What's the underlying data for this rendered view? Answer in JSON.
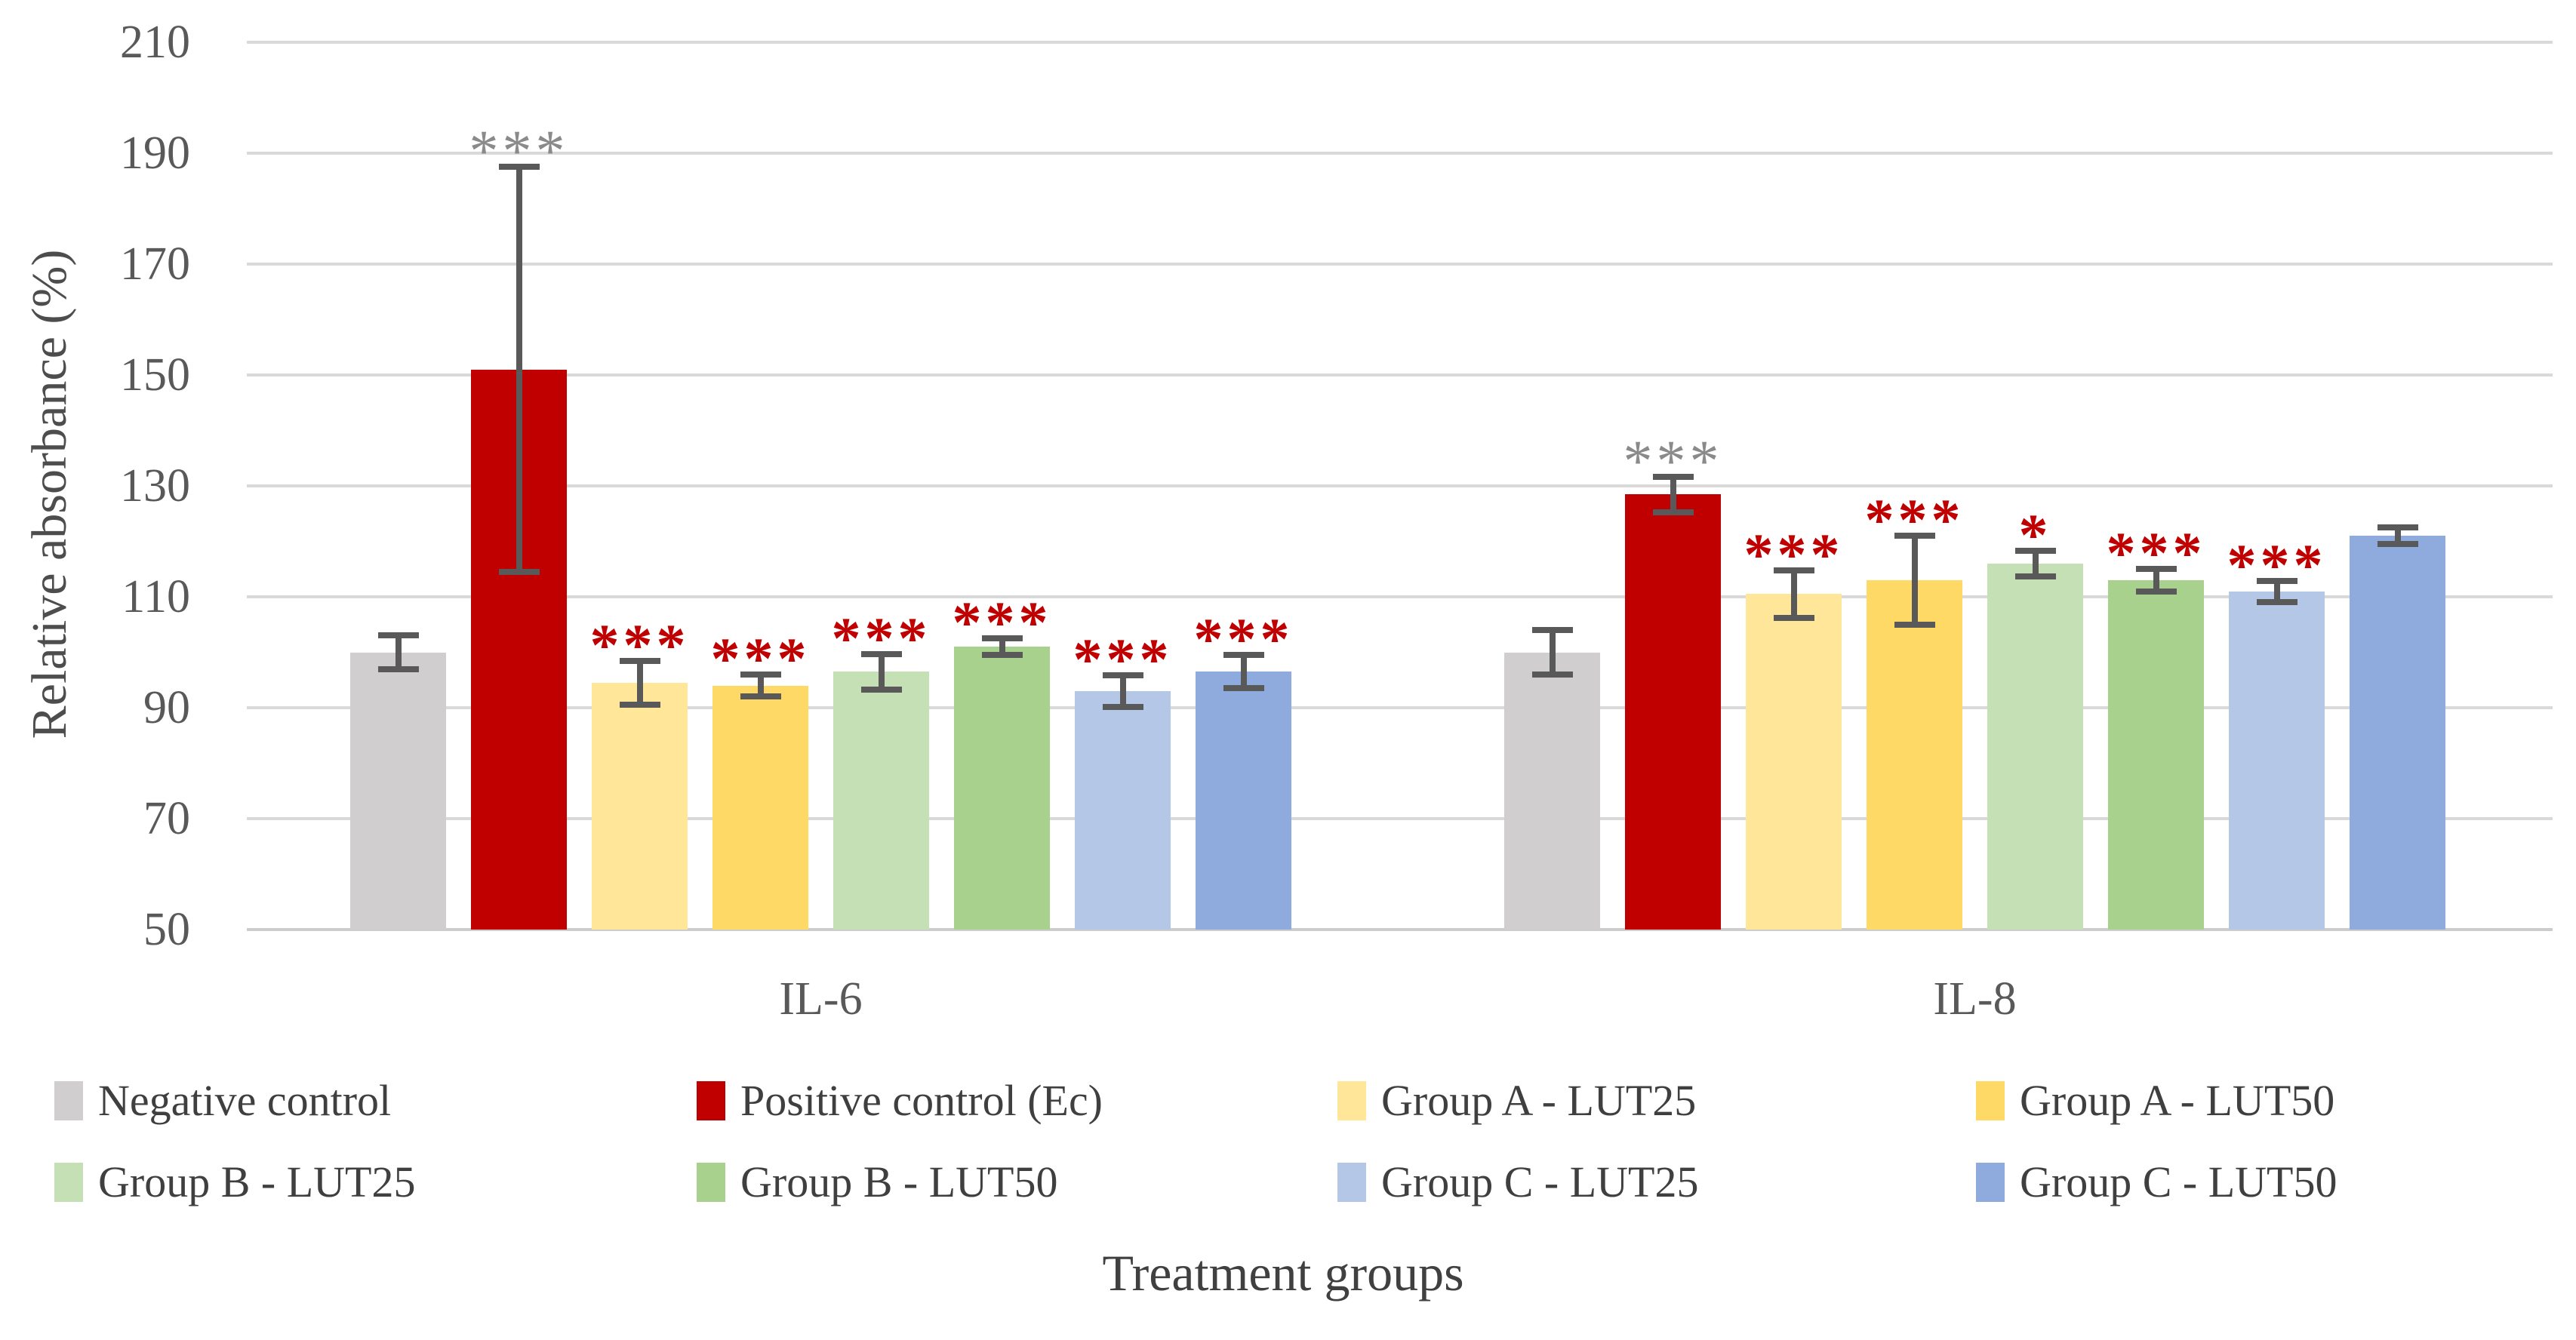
{
  "chart_data": {
    "type": "bar",
    "title": "",
    "ylabel": "Relative absorbance (%)",
    "xlabel": "Treatment groups",
    "ylim": [
      50,
      210
    ],
    "ytick_step": 20,
    "ytick_labels": [
      "50",
      "70",
      "90",
      "110",
      "130",
      "150",
      "170",
      "190",
      "210"
    ],
    "grid": "horizontal-only",
    "legend_position": "bottom",
    "gridline_color": "#d9d9d9",
    "error_bar_color": "#595959",
    "sig_color_control": "#8a8a8a",
    "sig_color_treatment": "#c00000",
    "categories": [
      "IL-6",
      "IL-8"
    ],
    "series": [
      {
        "name": "Negative control",
        "color": "#d0cece",
        "values": [
          100,
          100
        ],
        "errors": [
          3,
          4
        ],
        "stars": [
          "",
          ""
        ],
        "star_color": ""
      },
      {
        "name": "Positive control (Ec)",
        "color": "#c00000",
        "values": [
          151,
          128.5
        ],
        "errors": [
          36.5,
          3.2
        ],
        "stars": [
          "***",
          "***"
        ],
        "star_color": "gray"
      },
      {
        "name": "Group A - LUT25",
        "color": "#ffe699",
        "values": [
          94.5,
          110.5
        ],
        "errors": [
          4,
          4.3
        ],
        "stars": [
          "***",
          "***"
        ],
        "star_color": "red"
      },
      {
        "name": "Group A - LUT50",
        "color": "#ffd966",
        "values": [
          94,
          113
        ],
        "errors": [
          2,
          8
        ],
        "stars": [
          "***",
          "***"
        ],
        "star_color": "red"
      },
      {
        "name": "Group B - LUT25",
        "color": "#c5e0b4",
        "values": [
          96.5,
          116
        ],
        "errors": [
          3.2,
          2.3
        ],
        "stars": [
          "***",
          "*"
        ],
        "star_color": "red"
      },
      {
        "name": "Group B - LUT50",
        "color": "#a9d18e",
        "values": [
          101,
          113
        ],
        "errors": [
          1.5,
          2.1
        ],
        "stars": [
          "***",
          "***"
        ],
        "star_color": "red"
      },
      {
        "name": "Group C - LUT25",
        "color": "#b4c7e7",
        "values": [
          93,
          111
        ],
        "errors": [
          2.8,
          1.9
        ],
        "stars": [
          "***",
          "***"
        ],
        "star_color": "red"
      },
      {
        "name": "Group C - LUT50",
        "color": "#8faadc",
        "values": [
          96.5,
          121
        ],
        "errors": [
          3,
          1.5
        ],
        "stars": [
          "***",
          ""
        ],
        "star_color": "red"
      }
    ]
  }
}
